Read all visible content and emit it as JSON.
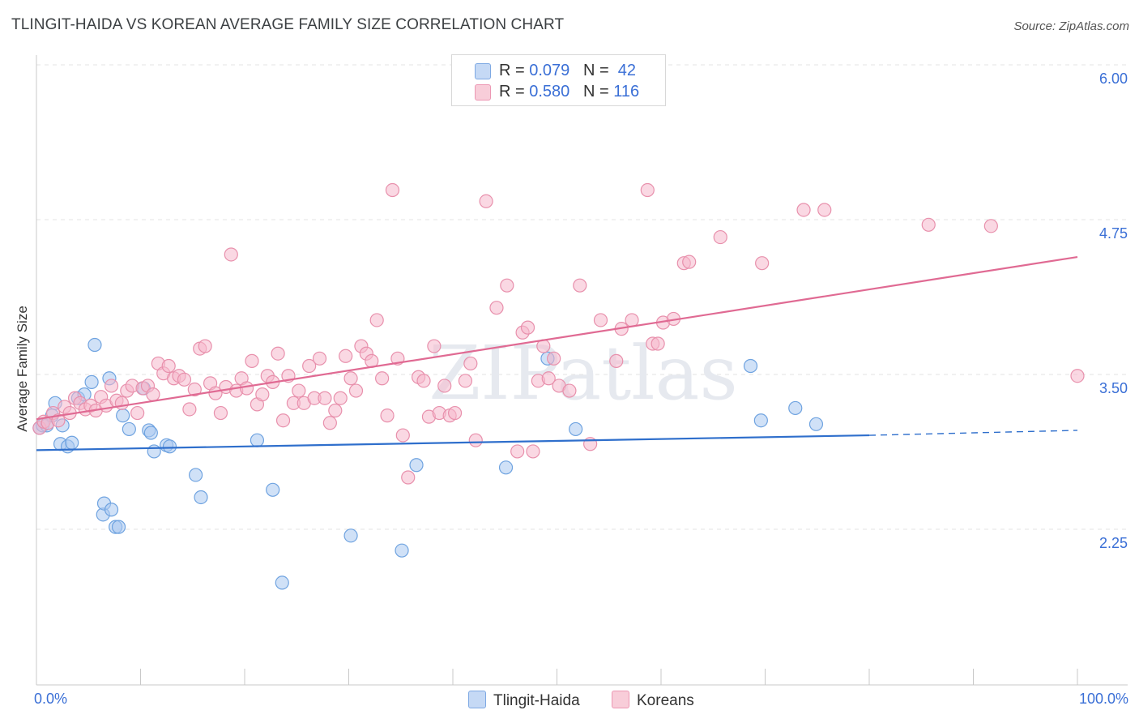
{
  "title": "TLINGIT-HAIDA VS KOREAN AVERAGE FAMILY SIZE CORRELATION CHART",
  "source": "Source: ZipAtlas.com",
  "watermark": "ZIPatlas",
  "legend": {
    "rows": [
      {
        "r_label": "R = ",
        "r_value": "0.079",
        "n_label": "N = ",
        "n_value": "42",
        "color": "#a9c8f0"
      },
      {
        "r_label": "R = ",
        "r_value": "0.580",
        "n_label": "N = ",
        "n_value": "116",
        "color": "#f5b8cc"
      }
    ]
  },
  "chart_data": {
    "type": "scatter",
    "title": "TLINGIT-HAIDA VS KOREAN AVERAGE FAMILY SIZE CORRELATION CHART",
    "xlabel": "",
    "ylabel": "Average Family Size",
    "xlim": [
      0,
      100
    ],
    "ylim": [
      1.25,
      6.1
    ],
    "x_tick_labels": [
      "0.0%",
      "100.0%"
    ],
    "y_ticks": [
      2.25,
      3.5,
      4.75,
      6.0
    ],
    "y_tick_labels": [
      "2.25",
      "3.50",
      "4.75",
      "6.00"
    ],
    "grid": true,
    "legend_position": "top-center",
    "series": [
      {
        "name": "Tlingit-Haida",
        "color": "#6fa3e0",
        "fill": "#a9c8f0",
        "trend": {
          "x0": 0,
          "y0": 3.0,
          "x1": 80,
          "y1": 3.12,
          "x_dashed_end": 100,
          "y_dashed_end": 3.16,
          "color": "#2f6fcc"
        },
        "points": [
          [
            0.3,
            3.18
          ],
          [
            0.6,
            3.2
          ],
          [
            1.0,
            3.2
          ],
          [
            1.5,
            3.28
          ],
          [
            1.8,
            3.38
          ],
          [
            2.3,
            3.05
          ],
          [
            2.5,
            3.2
          ],
          [
            3.0,
            3.03
          ],
          [
            3.4,
            3.06
          ],
          [
            4.0,
            3.42
          ],
          [
            4.6,
            3.45
          ],
          [
            5.3,
            3.55
          ],
          [
            5.6,
            3.85
          ],
          [
            6.4,
            2.48
          ],
          [
            6.5,
            2.57
          ],
          [
            7.0,
            3.58
          ],
          [
            7.2,
            2.52
          ],
          [
            7.6,
            2.38
          ],
          [
            7.9,
            2.38
          ],
          [
            8.3,
            3.28
          ],
          [
            8.9,
            3.17
          ],
          [
            10.3,
            3.5
          ],
          [
            10.8,
            3.16
          ],
          [
            11.0,
            3.14
          ],
          [
            11.3,
            2.99
          ],
          [
            12.5,
            3.04
          ],
          [
            12.8,
            3.03
          ],
          [
            15.3,
            2.8
          ],
          [
            15.8,
            2.62
          ],
          [
            21.2,
            3.08
          ],
          [
            22.7,
            2.68
          ],
          [
            23.6,
            1.93
          ],
          [
            30.2,
            2.31
          ],
          [
            35.1,
            2.19
          ],
          [
            36.5,
            2.88
          ],
          [
            45.1,
            2.86
          ],
          [
            49.1,
            3.74
          ],
          [
            51.8,
            3.17
          ],
          [
            68.6,
            3.68
          ],
          [
            69.6,
            3.24
          ],
          [
            72.9,
            3.34
          ],
          [
            74.9,
            3.21
          ]
        ]
      },
      {
        "name": "Koreans",
        "color": "#e890ac",
        "fill": "#f5b8cc",
        "trend": {
          "x0": 0,
          "y0": 3.25,
          "x1": 100,
          "y1": 4.56,
          "color": "#e06a93"
        },
        "points": [
          [
            0.3,
            3.18
          ],
          [
            0.7,
            3.23
          ],
          [
            1.1,
            3.22
          ],
          [
            1.6,
            3.3
          ],
          [
            2.1,
            3.24
          ],
          [
            2.7,
            3.35
          ],
          [
            3.2,
            3.3
          ],
          [
            3.7,
            3.42
          ],
          [
            4.2,
            3.38
          ],
          [
            4.7,
            3.33
          ],
          [
            5.2,
            3.36
          ],
          [
            5.7,
            3.32
          ],
          [
            6.2,
            3.43
          ],
          [
            6.7,
            3.36
          ],
          [
            7.2,
            3.52
          ],
          [
            7.7,
            3.4
          ],
          [
            8.2,
            3.38
          ],
          [
            8.7,
            3.48
          ],
          [
            9.2,
            3.52
          ],
          [
            9.7,
            3.3
          ],
          [
            10.2,
            3.5
          ],
          [
            10.7,
            3.52
          ],
          [
            11.2,
            3.45
          ],
          [
            11.7,
            3.7
          ],
          [
            12.2,
            3.62
          ],
          [
            12.7,
            3.68
          ],
          [
            13.2,
            3.58
          ],
          [
            13.7,
            3.6
          ],
          [
            14.2,
            3.57
          ],
          [
            14.7,
            3.33
          ],
          [
            15.2,
            3.49
          ],
          [
            15.7,
            3.82
          ],
          [
            16.2,
            3.84
          ],
          [
            16.7,
            3.54
          ],
          [
            17.2,
            3.46
          ],
          [
            17.7,
            3.3
          ],
          [
            18.2,
            3.51
          ],
          [
            18.7,
            4.58
          ],
          [
            19.2,
            3.48
          ],
          [
            19.7,
            3.58
          ],
          [
            20.2,
            3.5
          ],
          [
            20.7,
            3.72
          ],
          [
            21.2,
            3.37
          ],
          [
            21.7,
            3.45
          ],
          [
            22.2,
            3.6
          ],
          [
            22.7,
            3.55
          ],
          [
            23.2,
            3.78
          ],
          [
            23.7,
            3.24
          ],
          [
            24.2,
            3.6
          ],
          [
            24.7,
            3.38
          ],
          [
            25.2,
            3.48
          ],
          [
            25.7,
            3.38
          ],
          [
            26.2,
            3.68
          ],
          [
            26.7,
            3.42
          ],
          [
            27.2,
            3.74
          ],
          [
            27.7,
            3.42
          ],
          [
            28.2,
            3.22
          ],
          [
            28.7,
            3.32
          ],
          [
            29.2,
            3.42
          ],
          [
            29.7,
            3.76
          ],
          [
            30.2,
            3.58
          ],
          [
            30.7,
            3.48
          ],
          [
            31.2,
            3.84
          ],
          [
            31.7,
            3.78
          ],
          [
            32.2,
            3.72
          ],
          [
            32.7,
            4.05
          ],
          [
            33.2,
            3.58
          ],
          [
            33.7,
            3.28
          ],
          [
            34.2,
            5.1
          ],
          [
            34.7,
            3.74
          ],
          [
            35.2,
            3.12
          ],
          [
            35.7,
            2.78
          ],
          [
            36.7,
            3.59
          ],
          [
            37.2,
            3.56
          ],
          [
            37.7,
            3.27
          ],
          [
            38.2,
            3.84
          ],
          [
            38.7,
            3.3
          ],
          [
            39.2,
            3.52
          ],
          [
            39.7,
            3.28
          ],
          [
            40.2,
            3.3
          ],
          [
            41.2,
            3.56
          ],
          [
            41.7,
            3.7
          ],
          [
            42.2,
            3.08
          ],
          [
            43.2,
            5.01
          ],
          [
            44.2,
            4.15
          ],
          [
            45.2,
            4.33
          ],
          [
            46.2,
            2.99
          ],
          [
            46.7,
            3.95
          ],
          [
            47.2,
            3.99
          ],
          [
            47.7,
            2.99
          ],
          [
            48.2,
            3.56
          ],
          [
            48.7,
            3.84
          ],
          [
            49.2,
            3.58
          ],
          [
            49.7,
            3.74
          ],
          [
            50.2,
            3.52
          ],
          [
            51.2,
            3.48
          ],
          [
            52.2,
            4.33
          ],
          [
            53.2,
            3.05
          ],
          [
            54.2,
            4.05
          ],
          [
            55.7,
            3.72
          ],
          [
            56.2,
            3.98
          ],
          [
            57.2,
            4.05
          ],
          [
            58.7,
            5.1
          ],
          [
            59.2,
            3.86
          ],
          [
            59.7,
            3.86
          ],
          [
            60.2,
            4.03
          ],
          [
            61.2,
            4.06
          ],
          [
            62.2,
            4.51
          ],
          [
            62.7,
            4.52
          ],
          [
            65.7,
            4.72
          ],
          [
            69.7,
            4.51
          ],
          [
            73.7,
            4.94
          ],
          [
            75.7,
            4.94
          ],
          [
            85.7,
            4.82
          ],
          [
            91.7,
            4.81
          ],
          [
            100.0,
            3.6
          ]
        ]
      }
    ]
  },
  "bottom_legend": [
    {
      "label": "Tlingit-Haida",
      "color": "#a9c8f0"
    },
    {
      "label": "Koreans",
      "color": "#f5b8cc"
    }
  ]
}
